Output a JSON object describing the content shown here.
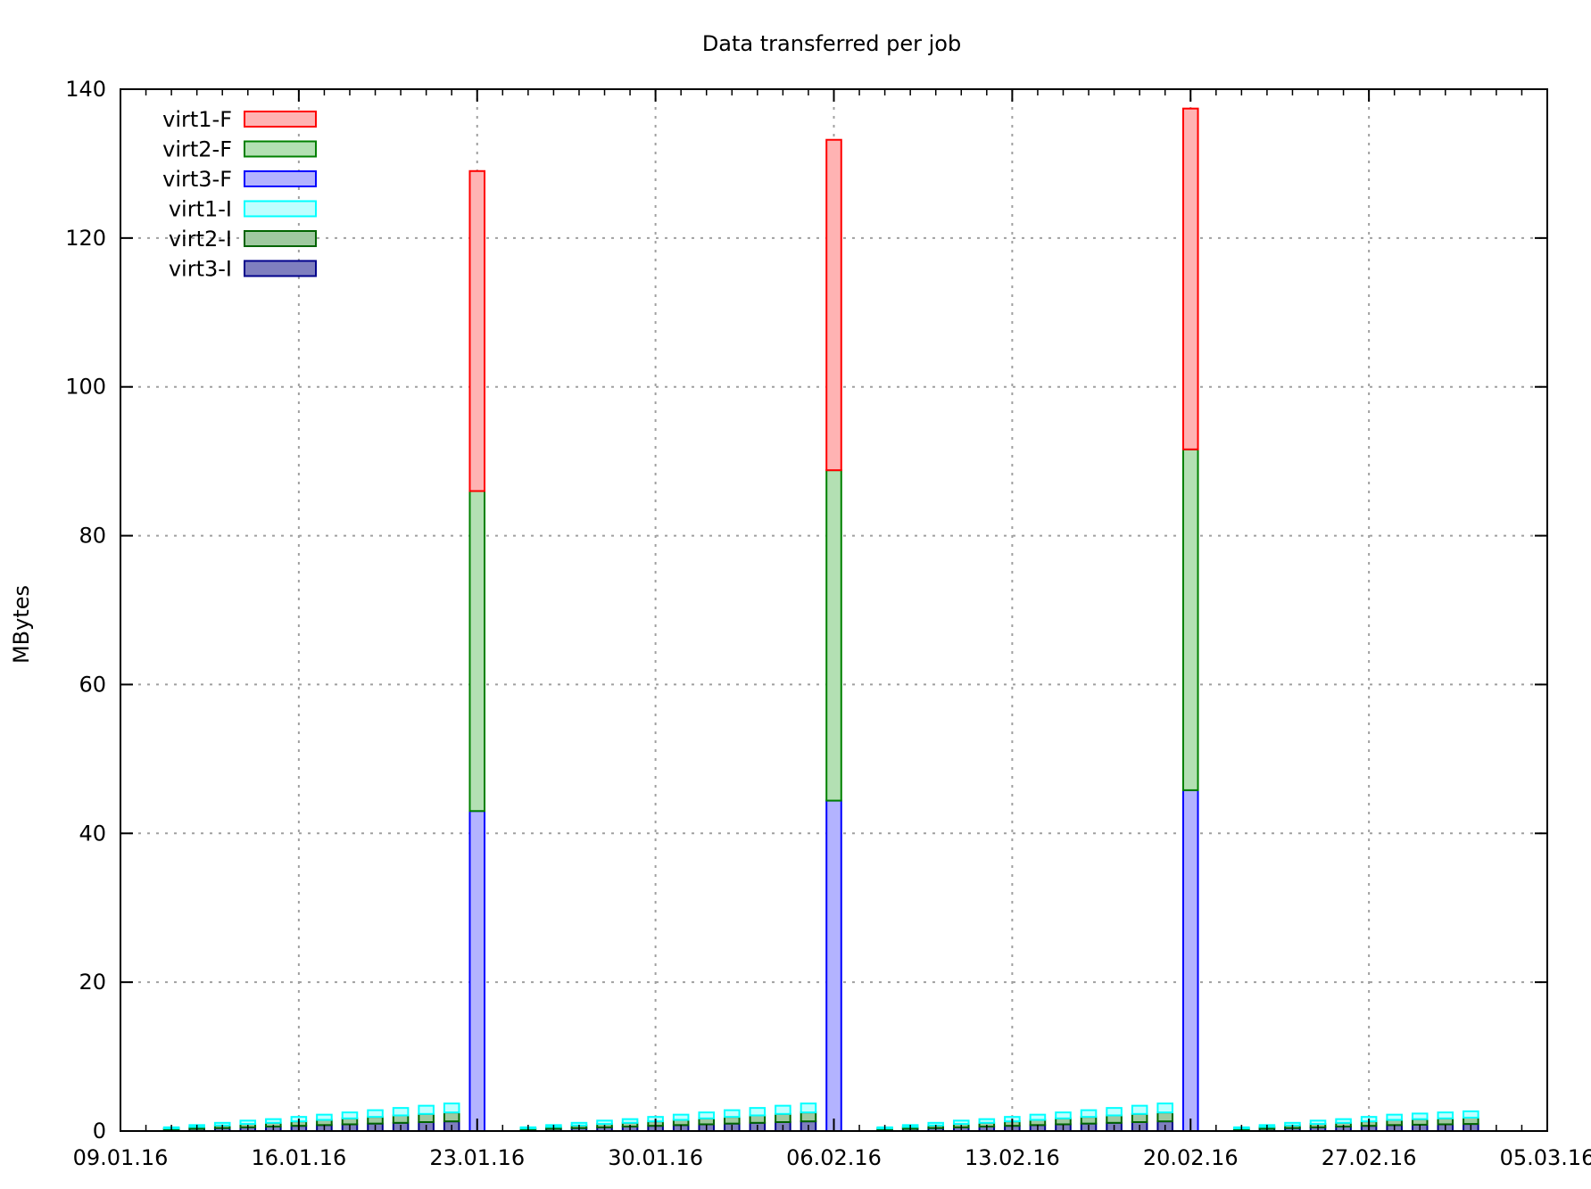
{
  "chart_data": {
    "type": "bar",
    "stacked": true,
    "title": "Data transferred per job",
    "ylabel": "MBytes",
    "xlabel": "",
    "x_is_date": true,
    "xlim": [
      "2016-01-09",
      "2016-03-05"
    ],
    "ylim": [
      0,
      140
    ],
    "x_ticks": [
      "09.01.16",
      "16.01.16",
      "23.01.16",
      "30.01.16",
      "06.02.16",
      "13.02.16",
      "20.02.16",
      "27.02.16",
      "05.03.16"
    ],
    "y_ticks": [
      "0",
      "20",
      "40",
      "60",
      "80",
      "100",
      "120",
      "140"
    ],
    "grid": true,
    "legend_position": "top-left",
    "series": [
      {
        "name": "virt3-I",
        "stroke": "#00008b",
        "fill": "#7f7fbf"
      },
      {
        "name": "virt2-I",
        "stroke": "#006400",
        "fill": "#9fc9a0"
      },
      {
        "name": "virt1-I",
        "stroke": "#00ffff",
        "fill": "#bfffff"
      },
      {
        "name": "virt3-F",
        "stroke": "#0000ff",
        "fill": "#b3b3ff"
      },
      {
        "name": "virt2-F",
        "stroke": "#008000",
        "fill": "#b3e0b3"
      },
      {
        "name": "virt1-F",
        "stroke": "#ff0000",
        "fill": "#ffb3b3"
      }
    ],
    "legend_order": [
      "virt1-F",
      "virt2-F",
      "virt3-F",
      "virt1-I",
      "virt2-I",
      "virt3-I"
    ],
    "bars": [
      {
        "date": "2016-01-11",
        "values": {
          "virt3-I": 0.2,
          "virt2-I": 0.15,
          "virt1-I": 0.15
        }
      },
      {
        "date": "2016-01-12",
        "values": {
          "virt3-I": 0.3,
          "virt2-I": 0.25,
          "virt1-I": 0.25
        }
      },
      {
        "date": "2016-01-13",
        "values": {
          "virt3-I": 0.4,
          "virt2-I": 0.35,
          "virt1-I": 0.35
        }
      },
      {
        "date": "2016-01-14",
        "values": {
          "virt3-I": 0.5,
          "virt2-I": 0.45,
          "virt1-I": 0.45
        }
      },
      {
        "date": "2016-01-15",
        "values": {
          "virt3-I": 0.6,
          "virt2-I": 0.5,
          "virt1-I": 0.5
        }
      },
      {
        "date": "2016-01-16",
        "values": {
          "virt3-I": 0.7,
          "virt2-I": 0.6,
          "virt1-I": 0.6
        }
      },
      {
        "date": "2016-01-17",
        "values": {
          "virt3-I": 0.8,
          "virt2-I": 0.7,
          "virt1-I": 0.7
        }
      },
      {
        "date": "2016-01-18",
        "values": {
          "virt3-I": 0.9,
          "virt2-I": 0.8,
          "virt1-I": 0.8
        }
      },
      {
        "date": "2016-01-19",
        "values": {
          "virt3-I": 1.0,
          "virt2-I": 0.9,
          "virt1-I": 0.9
        }
      },
      {
        "date": "2016-01-20",
        "values": {
          "virt3-I": 1.1,
          "virt2-I": 1.0,
          "virt1-I": 1.0
        }
      },
      {
        "date": "2016-01-21",
        "values": {
          "virt3-I": 1.2,
          "virt2-I": 1.1,
          "virt1-I": 1.1
        }
      },
      {
        "date": "2016-01-22",
        "values": {
          "virt3-I": 1.3,
          "virt2-I": 1.2,
          "virt1-I": 1.2
        }
      },
      {
        "date": "2016-01-23",
        "values": {
          "virt3-F": 43,
          "virt2-F": 43,
          "virt1-F": 43
        }
      },
      {
        "date": "2016-01-25",
        "values": {
          "virt3-I": 0.2,
          "virt2-I": 0.15,
          "virt1-I": 0.15
        }
      },
      {
        "date": "2016-01-26",
        "values": {
          "virt3-I": 0.3,
          "virt2-I": 0.25,
          "virt1-I": 0.25
        }
      },
      {
        "date": "2016-01-27",
        "values": {
          "virt3-I": 0.4,
          "virt2-I": 0.35,
          "virt1-I": 0.35
        }
      },
      {
        "date": "2016-01-28",
        "values": {
          "virt3-I": 0.5,
          "virt2-I": 0.45,
          "virt1-I": 0.45
        }
      },
      {
        "date": "2016-01-29",
        "values": {
          "virt3-I": 0.6,
          "virt2-I": 0.5,
          "virt1-I": 0.5
        }
      },
      {
        "date": "2016-01-30",
        "values": {
          "virt3-I": 0.7,
          "virt2-I": 0.6,
          "virt1-I": 0.6
        }
      },
      {
        "date": "2016-01-31",
        "values": {
          "virt3-I": 0.8,
          "virt2-I": 0.7,
          "virt1-I": 0.7
        }
      },
      {
        "date": "2016-02-01",
        "values": {
          "virt3-I": 0.9,
          "virt2-I": 0.8,
          "virt1-I": 0.8
        }
      },
      {
        "date": "2016-02-02",
        "values": {
          "virt3-I": 1.0,
          "virt2-I": 0.9,
          "virt1-I": 0.9
        }
      },
      {
        "date": "2016-02-03",
        "values": {
          "virt3-I": 1.1,
          "virt2-I": 1.0,
          "virt1-I": 1.0
        }
      },
      {
        "date": "2016-02-04",
        "values": {
          "virt3-I": 1.2,
          "virt2-I": 1.1,
          "virt1-I": 1.1
        }
      },
      {
        "date": "2016-02-05",
        "values": {
          "virt3-I": 1.3,
          "virt2-I": 1.2,
          "virt1-I": 1.2
        }
      },
      {
        "date": "2016-02-06",
        "values": {
          "virt3-F": 44.4,
          "virt2-F": 44.4,
          "virt1-F": 44.4
        }
      },
      {
        "date": "2016-02-08",
        "values": {
          "virt3-I": 0.2,
          "virt2-I": 0.15,
          "virt1-I": 0.15
        }
      },
      {
        "date": "2016-02-09",
        "values": {
          "virt3-I": 0.3,
          "virt2-I": 0.25,
          "virt1-I": 0.25
        }
      },
      {
        "date": "2016-02-10",
        "values": {
          "virt3-I": 0.4,
          "virt2-I": 0.35,
          "virt1-I": 0.35
        }
      },
      {
        "date": "2016-02-11",
        "values": {
          "virt3-I": 0.5,
          "virt2-I": 0.45,
          "virt1-I": 0.45
        }
      },
      {
        "date": "2016-02-12",
        "values": {
          "virt3-I": 0.6,
          "virt2-I": 0.5,
          "virt1-I": 0.5
        }
      },
      {
        "date": "2016-02-13",
        "values": {
          "virt3-I": 0.7,
          "virt2-I": 0.6,
          "virt1-I": 0.6
        }
      },
      {
        "date": "2016-02-14",
        "values": {
          "virt3-I": 0.8,
          "virt2-I": 0.7,
          "virt1-I": 0.7
        }
      },
      {
        "date": "2016-02-15",
        "values": {
          "virt3-I": 0.9,
          "virt2-I": 0.8,
          "virt1-I": 0.8
        }
      },
      {
        "date": "2016-02-16",
        "values": {
          "virt3-I": 1.0,
          "virt2-I": 0.9,
          "virt1-I": 0.9
        }
      },
      {
        "date": "2016-02-17",
        "values": {
          "virt3-I": 1.1,
          "virt2-I": 1.0,
          "virt1-I": 1.0
        }
      },
      {
        "date": "2016-02-18",
        "values": {
          "virt3-I": 1.2,
          "virt2-I": 1.1,
          "virt1-I": 1.1
        }
      },
      {
        "date": "2016-02-19",
        "values": {
          "virt3-I": 1.3,
          "virt2-I": 1.2,
          "virt1-I": 1.2
        }
      },
      {
        "date": "2016-02-20",
        "values": {
          "virt3-F": 45.8,
          "virt2-F": 45.8,
          "virt1-F": 45.8
        }
      },
      {
        "date": "2016-02-22",
        "values": {
          "virt3-I": 0.2,
          "virt2-I": 0.15,
          "virt1-I": 0.15
        }
      },
      {
        "date": "2016-02-23",
        "values": {
          "virt3-I": 0.3,
          "virt2-I": 0.25,
          "virt1-I": 0.25
        }
      },
      {
        "date": "2016-02-24",
        "values": {
          "virt3-I": 0.4,
          "virt2-I": 0.35,
          "virt1-I": 0.35
        }
      },
      {
        "date": "2016-02-25",
        "values": {
          "virt3-I": 0.5,
          "virt2-I": 0.45,
          "virt1-I": 0.45
        }
      },
      {
        "date": "2016-02-26",
        "values": {
          "virt3-I": 0.6,
          "virt2-I": 0.5,
          "virt1-I": 0.5
        }
      },
      {
        "date": "2016-02-27",
        "values": {
          "virt3-I": 0.7,
          "virt2-I": 0.6,
          "virt1-I": 0.6
        }
      },
      {
        "date": "2016-02-28",
        "values": {
          "virt3-I": 0.8,
          "virt2-I": 0.7,
          "virt1-I": 0.7
        }
      },
      {
        "date": "2016-02-29",
        "values": {
          "virt3-I": 0.85,
          "virt2-I": 0.75,
          "virt1-I": 0.75
        }
      },
      {
        "date": "2016-03-01",
        "values": {
          "virt3-I": 0.9,
          "virt2-I": 0.8,
          "virt1-I": 0.8
        }
      },
      {
        "date": "2016-03-02",
        "values": {
          "virt3-I": 0.95,
          "virt2-I": 0.85,
          "virt1-I": 0.85
        }
      }
    ]
  }
}
